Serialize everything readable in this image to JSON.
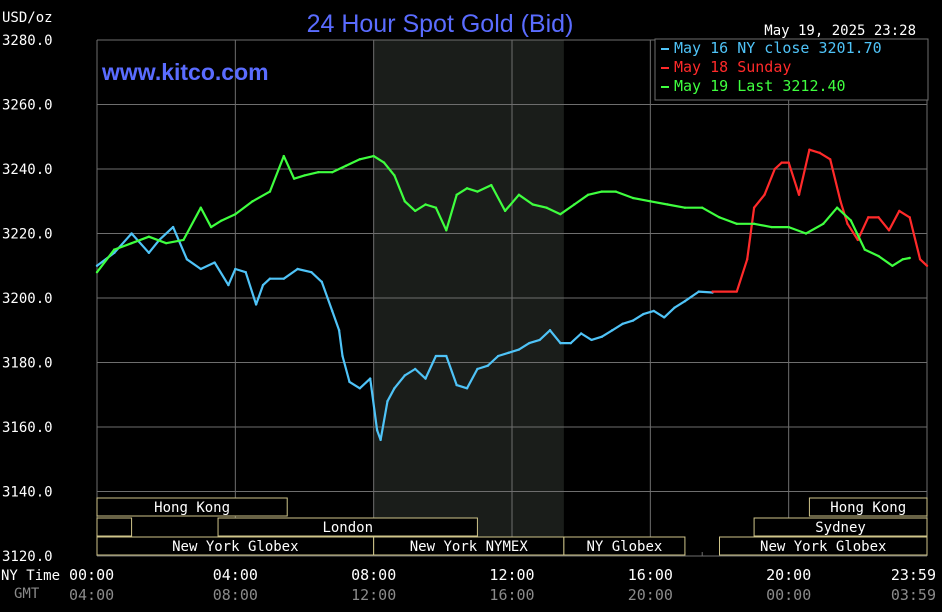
{
  "header": {
    "title": "24 Hour Spot Gold (Bid)",
    "unit": "USD/oz",
    "timestamp": "May 19, 2025 23:28",
    "watermark": "www.kitco.com"
  },
  "colors": {
    "background": "#000000",
    "title": "#5a6cff",
    "watermark": "#5a6cff",
    "grid": "#6e6e6e",
    "text": "#ffffff",
    "gmt_text": "#8a8a8a",
    "series_may16": "#4fc3f7",
    "series_may18": "#ff2a2a",
    "series_may19": "#3fff3f",
    "shade": "#1a1d1a",
    "session_box": "#cfc58a"
  },
  "chart_data": {
    "type": "line",
    "title": "24 Hour Spot Gold (Bid)",
    "ylabel": "USD/oz",
    "ylim": [
      3120,
      3280
    ],
    "yticks": [
      "3280.0",
      "3260.0",
      "3240.0",
      "3220.0",
      "3200.0",
      "3180.0",
      "3160.0",
      "3140.0",
      "3120.0"
    ],
    "xlim_hours": [
      0,
      24
    ],
    "xticks_ny": [
      "00:00",
      "04:00",
      "08:00",
      "12:00",
      "16:00",
      "20:00",
      "23:59"
    ],
    "xticks_gmt": [
      "04:00",
      "08:00",
      "12:00",
      "16:00",
      "20:00",
      "00:00",
      "03:59"
    ],
    "row_labels": {
      "ny": "NY Time",
      "gmt": "GMT"
    },
    "grid": true,
    "legend_position": "top-right",
    "shaded_hours": [
      8.0,
      13.5
    ],
    "legend": [
      {
        "label": "May 16 NY close 3201.70",
        "color": "#4fc3f7"
      },
      {
        "label": "May 18 Sunday",
        "color": "#ff2a2a"
      },
      {
        "label": "May 19 Last 3212.40",
        "color": "#3fff3f"
      }
    ],
    "series": [
      {
        "name": "May 16",
        "color": "#4fc3f7",
        "x": [
          0,
          0.5,
          1,
          1.5,
          1.8,
          2.2,
          2.6,
          3,
          3.4,
          3.8,
          4,
          4.3,
          4.6,
          4.8,
          5,
          5.4,
          5.8,
          6.2,
          6.5,
          6.8,
          7,
          7.1,
          7.3,
          7.6,
          7.9,
          8.1,
          8.2,
          8.4,
          8.6,
          8.9,
          9.2,
          9.5,
          9.8,
          10.1,
          10.4,
          10.7,
          11,
          11.3,
          11.6,
          11.9,
          12.2,
          12.5,
          12.8,
          13.1,
          13.4,
          13.7,
          14,
          14.3,
          14.6,
          14.9,
          15.2,
          15.5,
          15.8,
          16.1,
          16.4,
          16.7,
          17,
          17.4,
          17.8
        ],
        "values": [
          3210,
          3214,
          3220,
          3214,
          3218,
          3222,
          3212,
          3209,
          3211,
          3204,
          3209,
          3208,
          3198,
          3204,
          3206,
          3206,
          3209,
          3208,
          3205,
          3196,
          3190,
          3182,
          3174,
          3172,
          3175,
          3159,
          3156,
          3168,
          3172,
          3176,
          3178,
          3175,
          3182,
          3182,
          3173,
          3172,
          3178,
          3179,
          3182,
          3183,
          3184,
          3186,
          3187,
          3190,
          3186,
          3186,
          3189,
          3187,
          3188,
          3190,
          3192,
          3193,
          3195,
          3196,
          3194,
          3197,
          3199,
          3202,
          3201.7
        ]
      },
      {
        "name": "May 18",
        "color": "#ff2a2a",
        "x": [
          17.8,
          18.5,
          18.8,
          19.0,
          19.3,
          19.6,
          19.8,
          20.0,
          20.3,
          20.6,
          20.9,
          21.2,
          21.5,
          21.7,
          22.0,
          22.3,
          22.6,
          22.9,
          23.2,
          23.5,
          23.8,
          24
        ],
        "values": [
          3202,
          3202,
          3212,
          3228,
          3232,
          3240,
          3242,
          3242,
          3232,
          3246,
          3245,
          3243,
          3230,
          3223,
          3218,
          3225,
          3225,
          3221,
          3227,
          3225,
          3212,
          3210
        ]
      },
      {
        "name": "May 19",
        "color": "#3fff3f",
        "x": [
          0,
          0.5,
          1,
          1.5,
          2,
          2.5,
          3,
          3.3,
          3.6,
          4,
          4.5,
          5,
          5.4,
          5.7,
          6,
          6.4,
          6.8,
          7.2,
          7.6,
          8.0,
          8.3,
          8.6,
          8.9,
          9.2,
          9.5,
          9.8,
          10.1,
          10.4,
          10.7,
          11,
          11.4,
          11.8,
          12.2,
          12.6,
          13,
          13.4,
          13.8,
          14.2,
          14.6,
          15,
          15.5,
          16,
          16.5,
          17,
          17.5,
          18,
          18.5,
          19,
          19.5,
          20,
          20.5,
          21,
          21.4,
          21.8,
          22.2,
          22.6,
          23,
          23.3,
          23.5
        ],
        "values": [
          3208,
          3215,
          3217,
          3219,
          3217,
          3218,
          3228,
          3222,
          3224,
          3226,
          3230,
          3233,
          3244,
          3237,
          3238,
          3239,
          3239,
          3241,
          3243,
          3244,
          3242,
          3238,
          3230,
          3227,
          3229,
          3228,
          3221,
          3232,
          3234,
          3233,
          3235,
          3227,
          3232,
          3229,
          3228,
          3226,
          3229,
          3232,
          3233,
          3233,
          3231,
          3230,
          3229,
          3228,
          3228,
          3225,
          3223,
          3223,
          3222,
          3222,
          3220,
          3223,
          3228,
          3224,
          3215,
          3213,
          3210,
          3212,
          3212.4
        ]
      }
    ],
    "sessions": [
      {
        "label": "Hong Kong",
        "row": 0,
        "start": 0,
        "end": 5.5
      },
      {
        "label": "",
        "row": 1,
        "start": 0,
        "end": 1.0
      },
      {
        "label": "London",
        "row": 1,
        "start": 3.5,
        "end": 11.0
      },
      {
        "label": "New York Globex",
        "row": 2,
        "start": 0,
        "end": 8.0
      },
      {
        "label": "New York NYMEX",
        "row": 2,
        "start": 8.0,
        "end": 13.5
      },
      {
        "label": "NY Globex",
        "row": 2,
        "start": 13.5,
        "end": 17.0
      },
      {
        "label": "Hong Kong",
        "row": 0,
        "start": 20.6,
        "end": 24
      },
      {
        "label": "Sydney",
        "row": 1,
        "start": 19.0,
        "end": 24
      },
      {
        "label": "New York Globex",
        "row": 2,
        "start": 18.0,
        "end": 24
      }
    ]
  }
}
